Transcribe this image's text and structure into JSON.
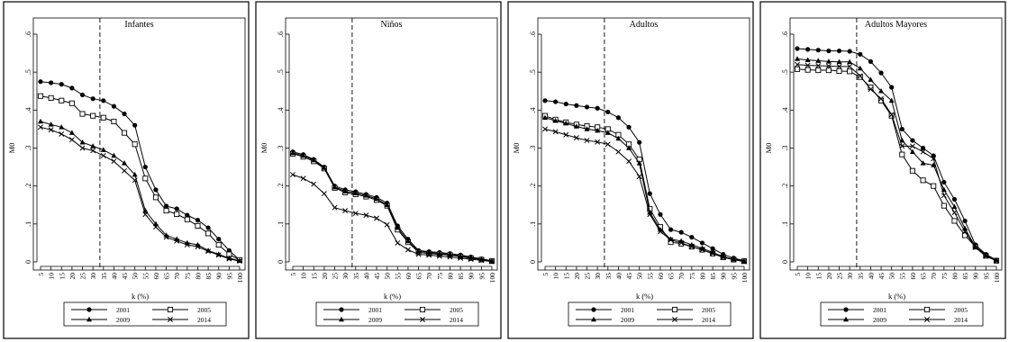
{
  "chart_data": [
    {
      "type": "line",
      "title": "Infantes",
      "xlabel": "k (%)",
      "ylabel": "M0",
      "x": [
        5,
        10,
        15,
        20,
        25,
        30,
        35,
        40,
        45,
        50,
        55,
        60,
        65,
        70,
        75,
        80,
        85,
        90,
        95,
        100
      ],
      "x_ticks": [
        "5",
        "10",
        "15",
        "20",
        "25",
        "30",
        "35",
        "40",
        "45",
        "50",
        "55",
        "60",
        "65",
        "70",
        "75",
        "80",
        "85",
        "90",
        "95",
        "100"
      ],
      "ylim": [
        0,
        0.6
      ],
      "y_ticks": [
        0,
        0.1,
        0.2,
        0.3,
        0.4,
        0.5,
        0.6
      ],
      "y_tick_labels": [
        "0",
        ".1",
        ".2",
        ".3",
        ".4",
        ".5",
        ".6"
      ],
      "vline": 33.33,
      "grid": false,
      "legend_position": "bottom",
      "series": [
        {
          "name": "2001",
          "marker": "circle",
          "values": [
            0.475,
            0.472,
            0.468,
            0.458,
            0.44,
            0.43,
            0.425,
            0.41,
            0.39,
            0.36,
            0.25,
            0.19,
            0.147,
            0.14,
            0.123,
            0.11,
            0.09,
            0.06,
            0.03,
            0.005
          ]
        },
        {
          "name": "2005",
          "marker": "square",
          "values": [
            0.437,
            0.432,
            0.425,
            0.418,
            0.39,
            0.385,
            0.38,
            0.37,
            0.34,
            0.31,
            0.22,
            0.17,
            0.135,
            0.126,
            0.112,
            0.095,
            0.075,
            0.045,
            0.02,
            0.005
          ]
        },
        {
          "name": "2009",
          "marker": "triangle",
          "values": [
            0.37,
            0.362,
            0.355,
            0.34,
            0.315,
            0.305,
            0.295,
            0.28,
            0.26,
            0.23,
            0.135,
            0.1,
            0.07,
            0.06,
            0.05,
            0.045,
            0.03,
            0.02,
            0.01,
            0.003
          ]
        },
        {
          "name": "2014",
          "marker": "x",
          "values": [
            0.355,
            0.348,
            0.337,
            0.322,
            0.3,
            0.293,
            0.28,
            0.265,
            0.24,
            0.215,
            0.125,
            0.092,
            0.065,
            0.055,
            0.045,
            0.04,
            0.028,
            0.018,
            0.008,
            0.002
          ]
        }
      ]
    },
    {
      "type": "line",
      "title": "Niños",
      "xlabel": "k (%)",
      "ylabel": "M0",
      "x": [
        5,
        10,
        15,
        20,
        25,
        30,
        35,
        40,
        45,
        50,
        55,
        60,
        65,
        70,
        75,
        80,
        85,
        90,
        95,
        100
      ],
      "x_ticks": [
        "5",
        "10",
        "15",
        "20",
        "25",
        "30",
        "35",
        "40",
        "45",
        "50",
        "55",
        "60",
        "65",
        "70",
        "75",
        "80",
        "85",
        "90",
        "95",
        "100"
      ],
      "ylim": [
        0,
        0.6
      ],
      "y_ticks": [
        0,
        0.1,
        0.2,
        0.3,
        0.4,
        0.5,
        0.6
      ],
      "y_tick_labels": [
        "0",
        ".1",
        ".2",
        ".3",
        ".4",
        ".5",
        ".6"
      ],
      "vline": 33.33,
      "grid": false,
      "legend_position": "bottom",
      "series": [
        {
          "name": "2001",
          "marker": "circle",
          "values": [
            0.29,
            0.283,
            0.27,
            0.25,
            0.2,
            0.19,
            0.185,
            0.178,
            0.17,
            0.155,
            0.095,
            0.06,
            0.03,
            0.027,
            0.025,
            0.022,
            0.018,
            0.013,
            0.008,
            0.003
          ]
        },
        {
          "name": "2005",
          "marker": "square",
          "values": [
            0.285,
            0.277,
            0.265,
            0.246,
            0.195,
            0.183,
            0.178,
            0.172,
            0.163,
            0.148,
            0.085,
            0.052,
            0.025,
            0.022,
            0.02,
            0.018,
            0.014,
            0.01,
            0.006,
            0.002
          ]
        },
        {
          "name": "2009",
          "marker": "triangle",
          "values": [
            0.287,
            0.28,
            0.268,
            0.248,
            0.197,
            0.186,
            0.181,
            0.175,
            0.166,
            0.15,
            0.09,
            0.055,
            0.028,
            0.025,
            0.022,
            0.02,
            0.016,
            0.012,
            0.007,
            0.002
          ]
        },
        {
          "name": "2014",
          "marker": "x",
          "values": [
            0.23,
            0.22,
            0.205,
            0.18,
            0.143,
            0.135,
            0.128,
            0.123,
            0.115,
            0.098,
            0.05,
            0.032,
            0.02,
            0.018,
            0.015,
            0.013,
            0.01,
            0.007,
            0.004,
            0.001
          ]
        }
      ]
    },
    {
      "type": "line",
      "title": "Adultos",
      "xlabel": "k (%)",
      "ylabel": "M0",
      "x": [
        5,
        10,
        15,
        20,
        25,
        30,
        35,
        40,
        45,
        50,
        55,
        60,
        65,
        70,
        75,
        80,
        85,
        90,
        95,
        100
      ],
      "x_ticks": [
        "5",
        "10",
        "15",
        "20",
        "25",
        "30",
        "35",
        "40",
        "45",
        "50",
        "55",
        "60",
        "65",
        "70",
        "75",
        "80",
        "85",
        "90",
        "95",
        "100"
      ],
      "ylim": [
        0,
        0.6
      ],
      "y_ticks": [
        0,
        0.1,
        0.2,
        0.3,
        0.4,
        0.5,
        0.6
      ],
      "y_tick_labels": [
        "0",
        ".1",
        ".2",
        ".3",
        ".4",
        ".5",
        ".6"
      ],
      "vline": 33.33,
      "grid": false,
      "legend_position": "bottom",
      "series": [
        {
          "name": "2001",
          "marker": "circle",
          "values": [
            0.425,
            0.422,
            0.416,
            0.412,
            0.408,
            0.405,
            0.395,
            0.38,
            0.355,
            0.315,
            0.18,
            0.125,
            0.085,
            0.078,
            0.065,
            0.05,
            0.035,
            0.02,
            0.01,
            0.003
          ]
        },
        {
          "name": "2005",
          "marker": "square",
          "values": [
            0.385,
            0.375,
            0.368,
            0.362,
            0.358,
            0.355,
            0.35,
            0.335,
            0.31,
            0.27,
            0.14,
            0.092,
            0.052,
            0.048,
            0.04,
            0.032,
            0.022,
            0.012,
            0.006,
            0.002
          ]
        },
        {
          "name": "2009",
          "marker": "triangle",
          "values": [
            0.38,
            0.372,
            0.365,
            0.357,
            0.35,
            0.346,
            0.34,
            0.325,
            0.3,
            0.26,
            0.13,
            0.085,
            0.06,
            0.055,
            0.045,
            0.036,
            0.025,
            0.014,
            0.007,
            0.002
          ]
        },
        {
          "name": "2014",
          "marker": "x",
          "values": [
            0.35,
            0.343,
            0.335,
            0.327,
            0.32,
            0.316,
            0.31,
            0.29,
            0.265,
            0.225,
            0.125,
            0.08,
            0.058,
            0.05,
            0.04,
            0.032,
            0.022,
            0.012,
            0.006,
            0.001
          ]
        }
      ]
    },
    {
      "type": "line",
      "title": "Adultos Mayores",
      "xlabel": "k (%)",
      "ylabel": "M0",
      "x": [
        5,
        10,
        15,
        20,
        25,
        30,
        35,
        40,
        45,
        50,
        55,
        60,
        65,
        70,
        75,
        80,
        85,
        90,
        95,
        100
      ],
      "x_ticks": [
        "5",
        "10",
        "15",
        "20",
        "25",
        "30",
        "35",
        "40",
        "45",
        "50",
        "55",
        "60",
        "65",
        "70",
        "75",
        "80",
        "85",
        "90",
        "95",
        "100"
      ],
      "ylim": [
        0,
        0.6
      ],
      "y_ticks": [
        0,
        0.1,
        0.2,
        0.3,
        0.4,
        0.5,
        0.6
      ],
      "y_tick_labels": [
        "0",
        ".1",
        ".2",
        ".3",
        ".4",
        ".5",
        ".6"
      ],
      "vline": 33.33,
      "grid": false,
      "legend_position": "bottom",
      "series": [
        {
          "name": "2001",
          "marker": "circle",
          "values": [
            0.562,
            0.56,
            0.558,
            0.556,
            0.556,
            0.555,
            0.547,
            0.528,
            0.498,
            0.46,
            0.35,
            0.32,
            0.3,
            0.28,
            0.21,
            0.165,
            0.108,
            0.045,
            0.02,
            0.005
          ]
        },
        {
          "name": "2005",
          "marker": "square",
          "values": [
            0.508,
            0.506,
            0.505,
            0.505,
            0.503,
            0.502,
            0.487,
            0.46,
            0.425,
            0.385,
            0.283,
            0.24,
            0.215,
            0.2,
            0.148,
            0.108,
            0.07,
            0.04,
            0.016,
            0.003
          ]
        },
        {
          "name": "2009",
          "marker": "triangle",
          "values": [
            0.535,
            0.532,
            0.53,
            0.528,
            0.527,
            0.527,
            0.51,
            0.48,
            0.45,
            0.425,
            0.32,
            0.29,
            0.26,
            0.255,
            0.19,
            0.145,
            0.088,
            0.04,
            0.018,
            0.004
          ]
        },
        {
          "name": "2014",
          "marker": "x",
          "values": [
            0.52,
            0.518,
            0.517,
            0.516,
            0.515,
            0.515,
            0.49,
            0.455,
            0.43,
            0.388,
            0.305,
            0.305,
            0.29,
            0.272,
            0.175,
            0.13,
            0.08,
            0.038,
            0.015,
            0.003
          ]
        }
      ]
    }
  ]
}
